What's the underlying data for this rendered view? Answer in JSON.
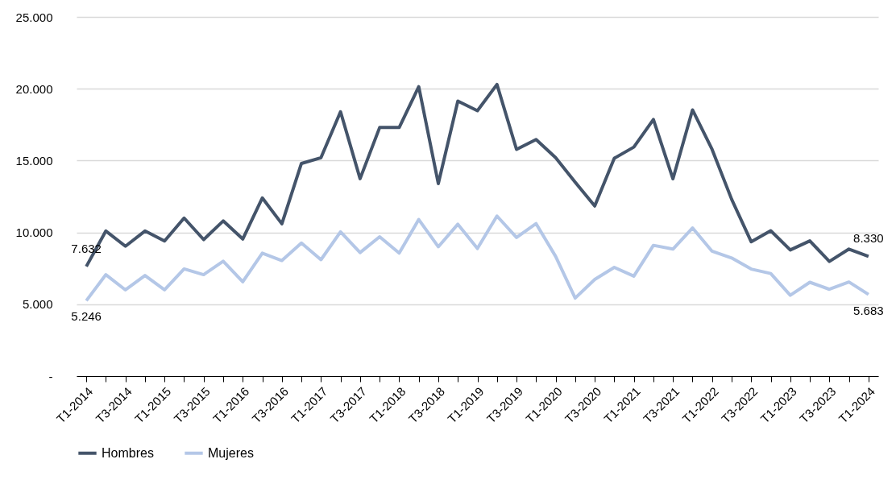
{
  "chart_data": {
    "type": "line",
    "categories": [
      "T1-2014",
      null,
      "T3-2014",
      null,
      "T1-2015",
      null,
      "T3-2015",
      null,
      "T1-2016",
      null,
      "T3-2016",
      null,
      "T1-2017",
      null,
      "T3-2017",
      null,
      "T1-2018",
      null,
      "T3-2018",
      null,
      "T1-2019",
      null,
      "T3-2019",
      null,
      "T1-2020",
      null,
      "T3-2020",
      null,
      "T1-2021",
      null,
      "T3-2021",
      null,
      "T1-2022",
      null,
      "T3-2022",
      null,
      "T1-2023",
      null,
      "T3-2023",
      null,
      "T1-2024"
    ],
    "series": [
      {
        "name": "Hombres",
        "color": "#44546a",
        "values": [
          7632,
          10100,
          9040,
          10100,
          9400,
          11000,
          9500,
          10800,
          9540,
          12400,
          10600,
          14800,
          15200,
          18400,
          13740,
          17300,
          17300,
          20140,
          13400,
          19140,
          18470,
          20300,
          15780,
          16470,
          15200,
          13500,
          11840,
          15160,
          15940,
          17860,
          13730,
          18530,
          15780,
          12310,
          9350,
          10120,
          8780,
          9410,
          7980,
          8840,
          8330
        ],
        "value_labels": [
          "7.632",
          null,
          null,
          null,
          null,
          null,
          null,
          null,
          null,
          null,
          null,
          null,
          null,
          null,
          null,
          null,
          null,
          null,
          null,
          null,
          null,
          null,
          null,
          null,
          null,
          null,
          null,
          null,
          null,
          null,
          null,
          null,
          null,
          null,
          null,
          null,
          null,
          null,
          null,
          null,
          "8.330"
        ]
      },
      {
        "name": "Mujeres",
        "color": "#b4c7e7",
        "values": [
          5246,
          7060,
          6000,
          7000,
          6000,
          7460,
          7060,
          8000,
          6560,
          8560,
          8040,
          9260,
          8100,
          10040,
          8600,
          9700,
          8560,
          10900,
          9000,
          10570,
          8880,
          11140,
          9650,
          10610,
          8330,
          5430,
          6730,
          7570,
          6960,
          9100,
          8840,
          10310,
          8690,
          8220,
          7450,
          7140,
          5630,
          6530,
          6040,
          6550,
          5683
        ],
        "value_labels": [
          "5.246",
          null,
          null,
          null,
          null,
          null,
          null,
          null,
          null,
          null,
          null,
          null,
          null,
          null,
          null,
          null,
          null,
          null,
          null,
          null,
          null,
          null,
          null,
          null,
          null,
          null,
          null,
          null,
          null,
          null,
          null,
          null,
          null,
          null,
          null,
          null,
          null,
          null,
          null,
          null,
          "5.683"
        ]
      }
    ],
    "ylim": [
      0,
      25000
    ],
    "yticks": [
      {
        "value": 0,
        "label": "-"
      },
      {
        "value": 5000,
        "label": "5.000"
      },
      {
        "value": 10000,
        "label": "10.000"
      },
      {
        "value": 15000,
        "label": "15.000"
      },
      {
        "value": 20000,
        "label": "20.000"
      },
      {
        "value": 25000,
        "label": "25.000"
      }
    ],
    "grid": "y",
    "legend": "bottom"
  }
}
